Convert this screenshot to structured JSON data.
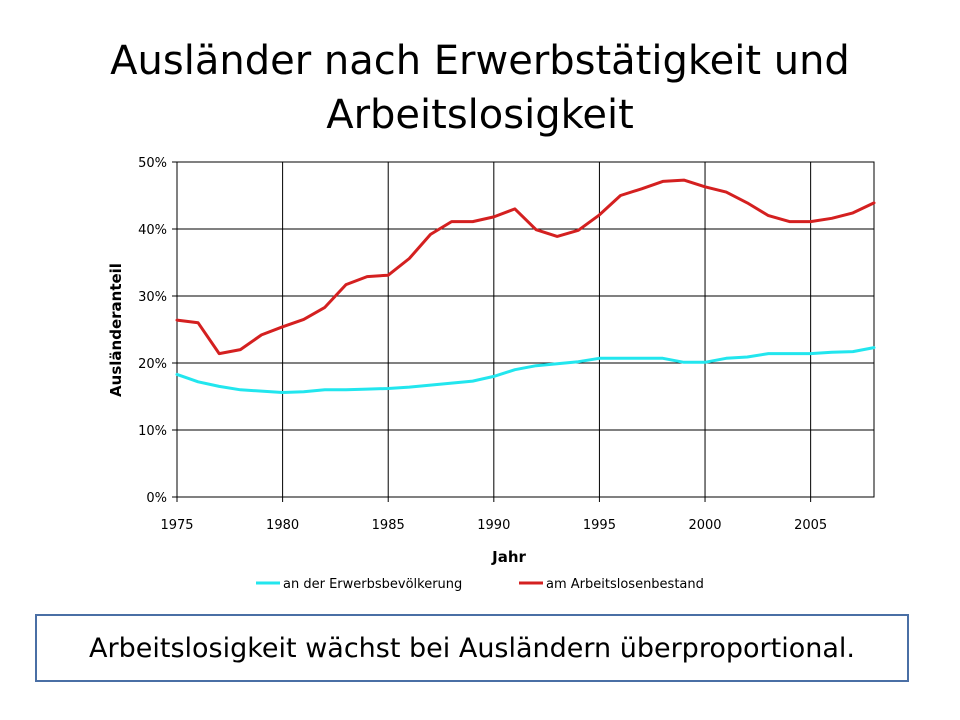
{
  "slide": {
    "title": "Ausländer nach Erwerbstätigkeit und Arbeitslosigkeit",
    "callout": "Arbeitslosigkeit wächst bei Ausländern überproportional."
  },
  "chart_data": {
    "type": "line",
    "title": "",
    "xlabel": "Jahr",
    "ylabel": "Ausländeranteil",
    "xlim": [
      1975,
      2008
    ],
    "ylim": [
      0,
      50
    ],
    "x_ticks": [
      1975,
      1980,
      1985,
      1990,
      1995,
      2000,
      2005
    ],
    "y_ticks": [
      0,
      10,
      20,
      30,
      40,
      50
    ],
    "y_tick_labels": [
      "0%",
      "10%",
      "20%",
      "30%",
      "40%",
      "50%"
    ],
    "grid": true,
    "legend_position": "bottom",
    "x": [
      1975,
      1976,
      1977,
      1978,
      1979,
      1980,
      1981,
      1982,
      1983,
      1984,
      1985,
      1986,
      1987,
      1988,
      1989,
      1990,
      1991,
      1992,
      1993,
      1994,
      1995,
      1996,
      1997,
      1998,
      1999,
      2000,
      2001,
      2002,
      2003,
      2004,
      2005,
      2006,
      2007,
      2008
    ],
    "series": [
      {
        "name": "an der Erwerbsbevölkerung",
        "color": "#22e6ee",
        "values": [
          18.3,
          17.2,
          16.5,
          16.0,
          15.8,
          15.6,
          15.7,
          16.0,
          16.0,
          16.1,
          16.2,
          16.4,
          16.7,
          17.0,
          17.3,
          18.0,
          19.0,
          19.6,
          19.9,
          20.2,
          20.7,
          20.7,
          20.7,
          20.7,
          20.1,
          20.1,
          20.7,
          20.9,
          21.4,
          21.4,
          21.4,
          21.6,
          21.7,
          22.3
        ]
      },
      {
        "name": "am Arbeitslosenbestand",
        "color": "#d42020",
        "values": [
          26.4,
          26.0,
          21.4,
          22.0,
          24.2,
          25.4,
          26.5,
          28.3,
          31.7,
          32.9,
          33.1,
          35.6,
          39.2,
          41.1,
          41.1,
          41.8,
          43.0,
          39.9,
          38.9,
          39.8,
          42.1,
          45.0,
          46.0,
          47.1,
          47.3,
          46.3,
          45.5,
          43.9,
          42.0,
          41.1,
          41.1,
          41.6,
          42.4,
          43.9
        ]
      }
    ]
  }
}
